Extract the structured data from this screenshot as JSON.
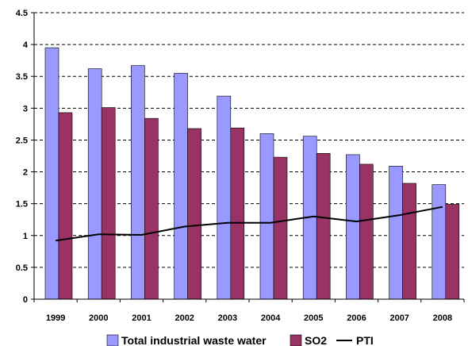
{
  "chart_data": {
    "type": "bar",
    "categories": [
      "1999",
      "2000",
      "2001",
      "2002",
      "2003",
      "2004",
      "2005",
      "2006",
      "2007",
      "2008"
    ],
    "series": [
      {
        "name": "Total industrial waste water",
        "kind": "bar",
        "color": "#9999FF",
        "values": [
          3.95,
          3.62,
          3.67,
          3.55,
          3.19,
          2.6,
          2.56,
          2.27,
          2.09,
          1.8
        ]
      },
      {
        "name": "SO2",
        "kind": "bar",
        "color": "#993366",
        "values": [
          2.93,
          3.01,
          2.84,
          2.68,
          2.69,
          2.23,
          2.29,
          2.12,
          1.82,
          1.49
        ]
      },
      {
        "name": "PTI",
        "kind": "line",
        "color": "#000000",
        "values": [
          0.92,
          1.02,
          1.01,
          1.14,
          1.2,
          1.2,
          1.3,
          1.22,
          1.32,
          1.45
        ]
      }
    ],
    "y_ticks": [
      "0",
      "0.5",
      "1",
      "1.5",
      "2",
      "2.5",
      "3",
      "3.5",
      "4",
      "4.5"
    ],
    "ylim": [
      0,
      4.5
    ],
    "grid": "horizontal dashed",
    "legend_position": "bottom",
    "title": "",
    "xlabel": "",
    "ylabel": ""
  }
}
